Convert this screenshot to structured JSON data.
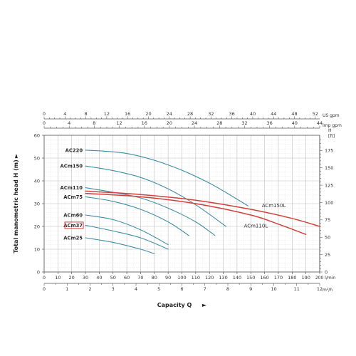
{
  "chart_data": {
    "type": "line",
    "ylabel": "Total manometric head H (m)",
    "xlabel": "Capacity Q",
    "x_lmin": {
      "unit": "l/min",
      "ticks": [
        "0",
        "10",
        "20",
        "30",
        "40",
        "50",
        "60",
        "70",
        "80",
        "90",
        "100",
        "110",
        "120",
        "130",
        "140",
        "150",
        "160",
        "170",
        "180",
        "190",
        "200"
      ],
      "range": [
        0,
        200
      ]
    },
    "x_m3h": {
      "unit": "m³/h",
      "ticks": [
        "0",
        "1",
        "2",
        "3",
        "4",
        "5",
        "6",
        "7",
        "8",
        "9",
        "10",
        "11",
        "12"
      ],
      "range": [
        0,
        12
      ]
    },
    "x_imp": {
      "unit": "Imp gpm",
      "ticks": [
        "0",
        "4",
        "8",
        "12",
        "16",
        "20",
        "24",
        "28",
        "32",
        "36",
        "40",
        "44"
      ],
      "range": [
        0,
        44
      ]
    },
    "x_us": {
      "unit": "US gpm",
      "ticks": [
        "0",
        "4",
        "8",
        "12",
        "16",
        "20",
        "24",
        "28",
        "32",
        "36",
        "40",
        "44",
        "48",
        "52"
      ],
      "range": [
        0,
        52
      ]
    },
    "y_m": {
      "unit": "",
      "ticks": [
        "0",
        "10",
        "20",
        "30",
        "40",
        "50",
        "60"
      ],
      "range": [
        0,
        60
      ]
    },
    "y_ft": {
      "unit": "H [ft]",
      "ticks": [
        "0",
        "25",
        "50",
        "75",
        "100",
        "125",
        "150",
        "175"
      ],
      "range": [
        0,
        196.85
      ]
    },
    "series": [
      {
        "name": "AC220",
        "color": "#3f8ea5",
        "x": [
          30,
          60,
          90,
          120,
          148
        ],
        "y": [
          53.5,
          52,
          47,
          39,
          29
        ]
      },
      {
        "name": "ACm150",
        "color": "#3f8ea5",
        "x": [
          30,
          50,
          70,
          90,
          110,
          132
        ],
        "y": [
          46.5,
          44.5,
          41.5,
          36.5,
          29.5,
          20
        ]
      },
      {
        "name": "ACm110",
        "color": "#3f8ea5",
        "x": [
          30,
          50,
          70,
          90,
          110,
          124
        ],
        "y": [
          37,
          35,
          32.5,
          28,
          22,
          16
        ]
      },
      {
        "name": "ACm75",
        "color": "#3f8ea5",
        "x": [
          30,
          50,
          70,
          90,
          105
        ],
        "y": [
          33,
          31,
          27.5,
          22,
          16
        ]
      },
      {
        "name": "ACm60",
        "color": "#3f8ea5",
        "x": [
          30,
          50,
          70,
          90
        ],
        "y": [
          25,
          23,
          18.5,
          12
        ]
      },
      {
        "name": "ACm37",
        "color": "#3f8ea5",
        "x": [
          30,
          50,
          70,
          90
        ],
        "y": [
          20.5,
          18,
          15,
          10
        ]
      },
      {
        "name": "ACm25",
        "color": "#3f8ea5",
        "x": [
          30,
          50,
          70,
          80
        ],
        "y": [
          15,
          13,
          10,
          8
        ]
      },
      {
        "name": "ACm150L",
        "color": "#d2403a",
        "x": [
          30,
          70,
          110,
          150,
          180,
          200
        ],
        "y": [
          35.5,
          34,
          31.5,
          27.5,
          23.5,
          20
        ]
      },
      {
        "name": "ACm110L",
        "color": "#d2403a",
        "x": [
          30,
          70,
          110,
          150,
          170,
          190
        ],
        "y": [
          34.5,
          33,
          30,
          25,
          21,
          16.5
        ]
      }
    ],
    "highlighted_series": "ACm37",
    "highlight_color": "#d2403a",
    "grid": true,
    "curve_label_placement": "left",
    "red_label_placement": "right"
  }
}
